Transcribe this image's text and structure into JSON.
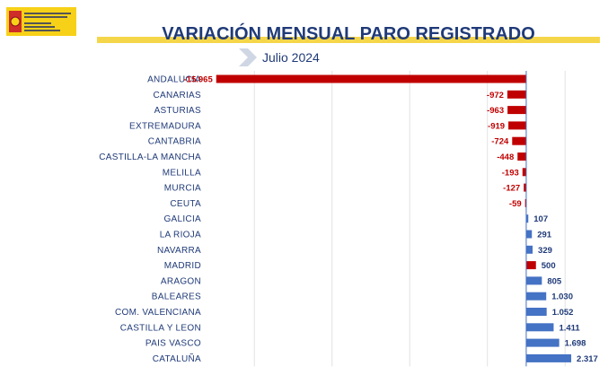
{
  "header": {
    "title": "VARIACIÓN MENSUAL PARO REGISTRADO",
    "subtitle": "Julio 2024",
    "logo_text": "VICEPRESIDENCIA SEGUNDA DEL GOBIERNO MINISTERIO DE TRABAJO Y ECONOMÍA SOCIAL"
  },
  "colors": {
    "negative": "#c00000",
    "positive": "#4472c4",
    "highlight": "#c00000",
    "title": "#1f3a78",
    "band": "#f5d64a"
  },
  "chart_data": {
    "type": "bar",
    "orientation": "horizontal",
    "title": "VARIACIÓN MENSUAL PARO REGISTRADO",
    "subtitle": "Julio 2024",
    "xlabel": "",
    "ylabel": "",
    "xlim": [
      -16000,
      2500
    ],
    "grid": true,
    "categories": [
      "ANDALUCIA",
      "CANARIAS",
      "ASTURIAS",
      "EXTREMADURA",
      "CANTABRIA",
      "CASTILLA-LA MANCHA",
      "MELILLA",
      "MURCIA",
      "CEUTA",
      "GALICIA",
      "LA RIOJA",
      "NAVARRA",
      "MADRID",
      "ARAGON",
      "BALEARES",
      "COM. VALENCIANA",
      "CASTILLA Y LEON",
      "PAIS VASCO",
      "CATALUÑA"
    ],
    "values": [
      -15965,
      -972,
      -963,
      -919,
      -724,
      -448,
      -193,
      -127,
      -59,
      107,
      291,
      329,
      500,
      805,
      1030,
      1052,
      1411,
      1698,
      2317
    ],
    "value_labels": [
      "-15.965",
      "-972",
      "-963",
      "-919",
      "-724",
      "-448",
      "-193",
      "-127",
      "-59",
      "107",
      "291",
      "329",
      "500",
      "805",
      "1.030",
      "1.052",
      "1.411",
      "1.698",
      "2.317"
    ],
    "highlighted_categories": [
      "MADRID"
    ]
  }
}
